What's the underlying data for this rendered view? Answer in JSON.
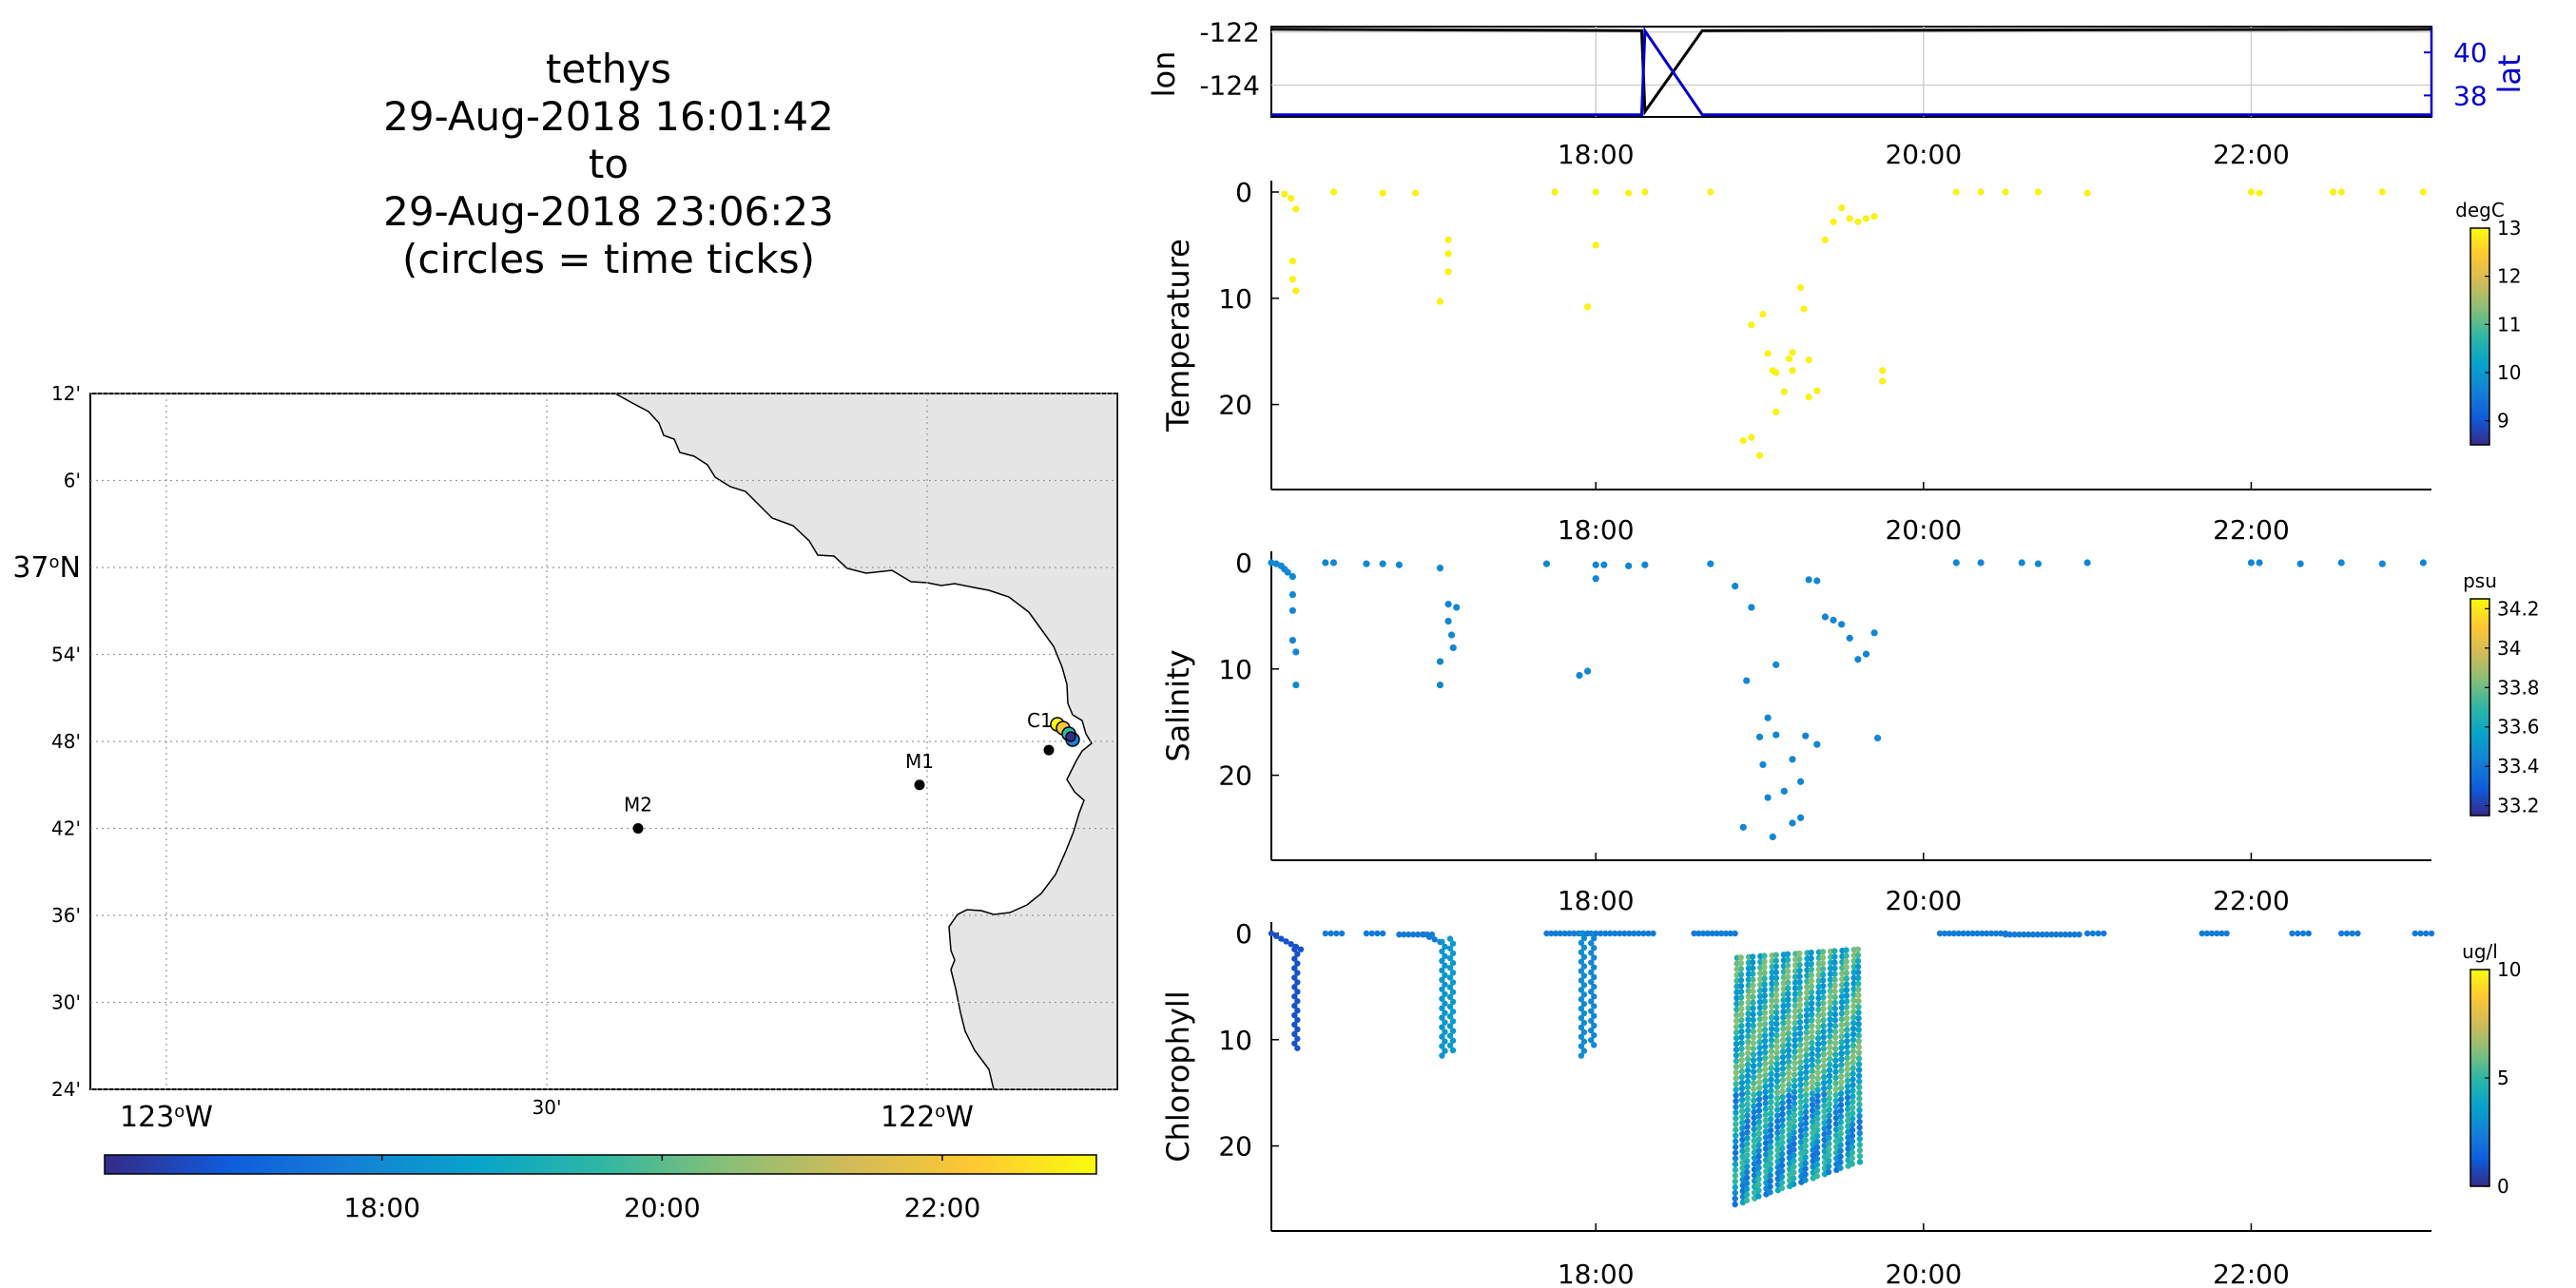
{
  "title": {
    "vehicle": "tethys",
    "start": "29-Aug-2018 16:01:42",
    "to": "to",
    "end": "29-Aug-2018 23:06:23",
    "note": "(circles = time ticks)"
  },
  "colors": {
    "lon_line": "#000000",
    "lat_line": "#0000cc",
    "land": "#e5e5e5",
    "grid": "#c8c8c8",
    "colormap": [
      "#352a87",
      "#0f5cdd",
      "#1481d6",
      "#06a4ca",
      "#2eb7a4",
      "#87bf77",
      "#d1bb59",
      "#fec832",
      "#f9fb0e"
    ]
  },
  "map": {
    "lat_ticks": [
      "24'",
      "30'",
      "36'",
      "42'",
      "48'",
      "54'",
      "37°N",
      "6'",
      "12'"
    ],
    "lat_values": [
      36.4,
      36.5,
      36.6,
      36.7,
      36.8,
      36.9,
      37.0,
      37.1,
      37.2
    ],
    "lon_ticks": [
      "123°W",
      "30'",
      "122°W"
    ],
    "lon_values": [
      -123.0,
      -122.5,
      -122.0
    ],
    "lon_range": [
      -123.1,
      -121.75
    ],
    "lat_range": [
      36.4,
      37.2
    ],
    "stations": [
      {
        "name": "M2",
        "lon": -122.38,
        "lat": 36.7
      },
      {
        "name": "M1",
        "lon": -122.01,
        "lat": 36.75
      },
      {
        "name": "C1",
        "lon": -121.84,
        "lat": 36.79
      }
    ],
    "track_label": "C1",
    "time_colorbar_ticks": [
      "18:00",
      "20:00",
      "22:00"
    ]
  },
  "nav": {
    "ylabel_left": "lon",
    "ylabel_right": "lat",
    "lon_ticks": [
      "-122",
      "-124"
    ],
    "lat_ticks": [
      "40",
      "38"
    ],
    "lon_ticks_values": [
      -122,
      -124
    ],
    "lat_ticks_values": [
      40,
      38
    ],
    "lon_range": [
      -125.2,
      -121.8
    ],
    "lat_range": [
      37.0,
      41.2
    ],
    "time_ticks": [
      "18:00",
      "20:00",
      "22:00"
    ],
    "lon_series": [
      [
        16.02,
        -121.9
      ],
      [
        18.28,
        -121.95
      ],
      [
        18.3,
        -125.0
      ],
      [
        18.65,
        -121.95
      ],
      [
        23.1,
        -121.9
      ]
    ],
    "lat_series": [
      [
        16.02,
        37.1
      ],
      [
        18.28,
        37.1
      ],
      [
        18.3,
        41.0
      ],
      [
        18.65,
        37.1
      ],
      [
        23.1,
        37.1
      ]
    ]
  },
  "chart_data": [
    {
      "type": "scatter",
      "ylabel": "Temperature",
      "clabel": "degC",
      "cticks": [
        "13",
        "12",
        "11",
        "10",
        "9"
      ],
      "cticks_values": [
        13,
        12,
        11,
        10,
        9
      ],
      "crange": [
        8.5,
        13
      ],
      "xticks": [
        "18:00",
        "20:00",
        "22:00"
      ],
      "yticks": [
        "0",
        "10",
        "20"
      ],
      "xlim": [
        16.02,
        23.1
      ],
      "ylim": [
        0,
        28
      ],
      "points": [
        [
          16.1,
          0.2
        ],
        [
          16.14,
          0.6
        ],
        [
          16.15,
          6.5
        ],
        [
          16.15,
          8.2
        ],
        [
          16.17,
          9.3
        ],
        [
          16.17,
          1.6
        ],
        [
          16.4,
          0.0
        ],
        [
          16.7,
          0.1
        ],
        [
          16.9,
          0.1
        ],
        [
          17.05,
          10.3
        ],
        [
          17.1,
          4.5
        ],
        [
          17.1,
          7.5
        ],
        [
          17.1,
          5.8
        ],
        [
          17.75,
          0.0
        ],
        [
          17.95,
          10.8
        ],
        [
          18.0,
          5.0
        ],
        [
          18.0,
          0.0
        ],
        [
          18.2,
          0.1
        ],
        [
          18.3,
          0.0
        ],
        [
          18.7,
          0.0
        ],
        [
          18.95,
          12.5
        ],
        [
          18.9,
          23.4
        ],
        [
          18.95,
          23.1
        ],
        [
          19.0,
          24.8
        ],
        [
          19.02,
          11.5
        ],
        [
          19.05,
          15.2
        ],
        [
          19.08,
          16.8
        ],
        [
          19.1,
          17.0
        ],
        [
          19.1,
          20.7
        ],
        [
          19.15,
          18.8
        ],
        [
          19.18,
          15.7
        ],
        [
          19.2,
          15.1
        ],
        [
          19.2,
          16.8
        ],
        [
          19.25,
          9.0
        ],
        [
          19.27,
          11.0
        ],
        [
          19.3,
          19.3
        ],
        [
          19.3,
          15.8
        ],
        [
          19.35,
          18.7
        ],
        [
          19.4,
          4.5
        ],
        [
          19.45,
          2.8
        ],
        [
          19.5,
          1.5
        ],
        [
          19.55,
          2.5
        ],
        [
          19.6,
          2.8
        ],
        [
          19.65,
          2.5
        ],
        [
          19.7,
          2.3
        ],
        [
          19.75,
          16.8
        ],
        [
          19.75,
          17.8
        ],
        [
          20.2,
          0.0
        ],
        [
          20.35,
          0.0
        ],
        [
          20.5,
          0.0
        ],
        [
          20.7,
          0.0
        ],
        [
          21.0,
          0.1
        ],
        [
          22.0,
          0.0
        ],
        [
          22.05,
          0.1
        ],
        [
          22.5,
          0.0
        ],
        [
          22.55,
          0.0
        ],
        [
          22.8,
          0.0
        ],
        [
          23.05,
          0.0
        ]
      ],
      "point_value": 12.9
    },
    {
      "type": "scatter",
      "ylabel": "Salinity",
      "clabel": "psu",
      "cticks": [
        "34.2",
        "34",
        "33.8",
        "33.6",
        "33.4",
        "33.2"
      ],
      "cticks_values": [
        34.2,
        34.0,
        33.8,
        33.6,
        33.4,
        33.2
      ],
      "crange": [
        33.15,
        34.25
      ],
      "xticks": [
        "18:00",
        "20:00",
        "22:00"
      ],
      "yticks": [
        "0",
        "10",
        "20"
      ],
      "xlim": [
        16.02,
        23.1
      ],
      "ylim": [
        0,
        28
      ],
      "points": [
        [
          16.02,
          0.0
        ],
        [
          16.05,
          0.1
        ],
        [
          16.08,
          0.3
        ],
        [
          16.1,
          0.6
        ],
        [
          16.12,
          0.9
        ],
        [
          16.15,
          1.3
        ],
        [
          16.15,
          3.0
        ],
        [
          16.15,
          4.5
        ],
        [
          16.15,
          7.3
        ],
        [
          16.17,
          8.4
        ],
        [
          16.17,
          11.5
        ],
        [
          16.35,
          0.0
        ],
        [
          16.4,
          0.0
        ],
        [
          16.6,
          0.1
        ],
        [
          16.7,
          0.1
        ],
        [
          16.8,
          0.2
        ],
        [
          17.05,
          0.5
        ],
        [
          17.05,
          11.5
        ],
        [
          17.05,
          9.3
        ],
        [
          17.1,
          3.9
        ],
        [
          17.1,
          5.5
        ],
        [
          17.12,
          6.8
        ],
        [
          17.13,
          8.0
        ],
        [
          17.15,
          4.2
        ],
        [
          17.7,
          0.1
        ],
        [
          17.9,
          10.6
        ],
        [
          17.95,
          10.2
        ],
        [
          18.0,
          0.2
        ],
        [
          18.0,
          1.5
        ],
        [
          18.05,
          0.2
        ],
        [
          18.2,
          0.3
        ],
        [
          18.3,
          0.2
        ],
        [
          18.7,
          0.1
        ],
        [
          18.85,
          2.2
        ],
        [
          18.95,
          4.2
        ],
        [
          18.92,
          11.1
        ],
        [
          18.9,
          24.9
        ],
        [
          19.0,
          16.4
        ],
        [
          19.02,
          19.0
        ],
        [
          19.05,
          22.1
        ],
        [
          19.1,
          16.2
        ],
        [
          19.15,
          21.5
        ],
        [
          19.1,
          9.6
        ],
        [
          19.05,
          14.6
        ],
        [
          19.2,
          18.5
        ],
        [
          19.25,
          20.6
        ],
        [
          19.28,
          16.3
        ],
        [
          19.3,
          1.6
        ],
        [
          19.35,
          1.7
        ],
        [
          19.4,
          5.1
        ],
        [
          19.45,
          5.4
        ],
        [
          19.5,
          5.8
        ],
        [
          19.55,
          7.1
        ],
        [
          19.6,
          9.1
        ],
        [
          19.65,
          8.6
        ],
        [
          19.7,
          6.6
        ],
        [
          19.72,
          16.5
        ],
        [
          19.25,
          24.0
        ],
        [
          19.35,
          17.1
        ],
        [
          19.08,
          25.8
        ],
        [
          19.2,
          24.5
        ],
        [
          20.2,
          0.0
        ],
        [
          20.35,
          0.0
        ],
        [
          20.6,
          0.0
        ],
        [
          20.7,
          0.1
        ],
        [
          21.0,
          0.0
        ],
        [
          22.0,
          0.0
        ],
        [
          22.05,
          0.0
        ],
        [
          22.3,
          0.1
        ],
        [
          22.55,
          0.0
        ],
        [
          22.8,
          0.1
        ],
        [
          23.05,
          0.0
        ]
      ],
      "point_value": 33.45
    },
    {
      "type": "scatter",
      "ylabel": "Chlorophyll",
      "clabel": "ug/l",
      "cticks": [
        "10",
        "5",
        "0"
      ],
      "cticks_values": [
        10,
        5,
        0
      ],
      "crange": [
        0,
        10
      ],
      "xticks": [
        "18:00",
        "20:00",
        "22:00"
      ],
      "yticks": [
        "0",
        "10",
        "20"
      ],
      "xlim": [
        16.02,
        23.1
      ],
      "ylim": [
        0,
        28
      ],
      "segments": [
        {
          "kind": "ramp",
          "x0": 16.02,
          "x1": 16.2,
          "y0": 0,
          "y1": 1.5,
          "value": 1.0
        },
        {
          "kind": "profile",
          "x": 16.17,
          "y0": 1.5,
          "y1": 10.8,
          "value": 1.0
        },
        {
          "kind": "flat",
          "x0": 16.35,
          "x1": 16.45,
          "y": 0,
          "value": 2.3
        },
        {
          "kind": "flat",
          "x0": 16.6,
          "x1": 16.7,
          "y": 0,
          "value": 2.3
        },
        {
          "kind": "flat",
          "x0": 16.8,
          "x1": 17.0,
          "y": 0.1,
          "value": 2.3
        },
        {
          "kind": "ramp",
          "x0": 16.95,
          "x1": 17.05,
          "y0": 0.1,
          "y1": 0.8,
          "value": 2.3
        },
        {
          "kind": "profile",
          "x": 17.07,
          "y0": 0.8,
          "y1": 11.5,
          "value": 3.2
        },
        {
          "kind": "profile",
          "x": 17.12,
          "y0": 0.5,
          "y1": 11.0,
          "value": 3.4
        },
        {
          "kind": "flat",
          "x0": 17.7,
          "x1": 17.95,
          "y": 0,
          "value": 2.3
        },
        {
          "kind": "profile",
          "x": 17.92,
          "y0": 0,
          "y1": 11.5,
          "value": 2.9
        },
        {
          "kind": "profile",
          "x": 17.98,
          "y0": 0,
          "y1": 10.5,
          "value": 2.7
        },
        {
          "kind": "flat",
          "x0": 18.0,
          "x1": 18.35,
          "y": 0,
          "value": 2.3
        },
        {
          "kind": "flat",
          "x0": 18.6,
          "x1": 18.85,
          "y": 0,
          "value": 2.3
        },
        {
          "kind": "yoyo",
          "x0": 18.85,
          "x1": 19.6,
          "ytop0": 2.3,
          "ytop1": 1.5,
          "ybot0": 25.5,
          "ybot1": 21.5,
          "n": 22,
          "value": 4.2
        },
        {
          "kind": "flat",
          "x0": 20.1,
          "x1": 20.5,
          "y": 0,
          "value": 2.3
        },
        {
          "kind": "flat",
          "x0": 20.5,
          "x1": 20.95,
          "y": 0.1,
          "value": 2.3
        },
        {
          "kind": "flat",
          "x0": 21.0,
          "x1": 21.1,
          "y": 0,
          "value": 2.3
        },
        {
          "kind": "flat",
          "x0": 21.7,
          "x1": 21.85,
          "y": 0,
          "value": 2.3
        },
        {
          "kind": "flat",
          "x0": 22.25,
          "x1": 22.35,
          "y": 0,
          "value": 2.3
        },
        {
          "kind": "flat",
          "x0": 22.55,
          "x1": 22.65,
          "y": 0,
          "value": 2.3
        },
        {
          "kind": "flat",
          "x0": 23.0,
          "x1": 23.1,
          "y": 0,
          "value": 2.3
        }
      ]
    }
  ]
}
